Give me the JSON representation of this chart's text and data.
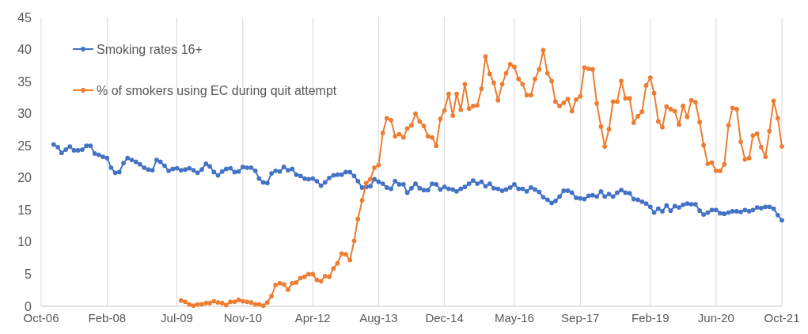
{
  "chart_data": {
    "type": "line",
    "x": [
      "2007-01",
      "2007-02",
      "2007-03",
      "2007-04",
      "2007-05",
      "2007-06",
      "2007-07",
      "2007-08",
      "2007-09",
      "2007-10",
      "2007-11",
      "2007-12",
      "2008-01",
      "2008-02",
      "2008-03",
      "2008-04",
      "2008-05",
      "2008-06",
      "2008-07",
      "2008-08",
      "2008-09",
      "2008-10",
      "2008-11",
      "2008-12",
      "2009-01",
      "2009-02",
      "2009-03",
      "2009-04",
      "2009-05",
      "2009-06",
      "2009-07",
      "2009-08",
      "2009-09",
      "2009-10",
      "2009-11",
      "2009-12",
      "2010-01",
      "2010-02",
      "2010-03",
      "2010-04",
      "2010-05",
      "2010-06",
      "2010-07",
      "2010-08",
      "2010-09",
      "2010-10",
      "2010-11",
      "2010-12",
      "2011-01",
      "2011-02",
      "2011-03",
      "2011-04",
      "2011-05",
      "2011-06",
      "2011-07",
      "2011-08",
      "2011-09",
      "2011-10",
      "2011-11",
      "2011-12",
      "2012-01",
      "2012-02",
      "2012-03",
      "2012-04",
      "2012-05",
      "2012-06",
      "2012-07",
      "2012-08",
      "2012-09",
      "2012-10",
      "2012-11",
      "2012-12",
      "2013-01",
      "2013-02",
      "2013-03",
      "2013-04",
      "2013-05",
      "2013-06",
      "2013-07",
      "2013-08",
      "2013-09",
      "2013-10",
      "2013-11",
      "2013-12",
      "2014-01",
      "2014-02",
      "2014-03",
      "2014-04",
      "2014-05",
      "2014-06",
      "2014-07",
      "2014-08",
      "2014-09",
      "2014-10",
      "2014-11",
      "2014-12",
      "2015-01",
      "2015-02",
      "2015-03",
      "2015-04",
      "2015-05",
      "2015-06",
      "2015-07",
      "2015-08",
      "2015-09",
      "2015-10",
      "2015-11",
      "2015-12",
      "2016-01",
      "2016-02",
      "2016-03",
      "2016-04",
      "2016-05",
      "2016-06",
      "2016-07",
      "2016-08",
      "2016-09",
      "2016-10",
      "2016-11",
      "2016-12",
      "2017-01",
      "2017-02",
      "2017-03",
      "2017-04",
      "2017-05",
      "2017-06",
      "2017-07",
      "2017-08",
      "2017-09",
      "2017-10",
      "2017-11",
      "2017-12",
      "2018-01",
      "2018-02",
      "2018-03",
      "2018-04",
      "2018-05",
      "2018-06",
      "2018-07",
      "2018-08",
      "2018-09",
      "2018-10",
      "2018-11",
      "2018-12",
      "2019-01",
      "2019-02",
      "2019-03",
      "2019-04",
      "2019-05",
      "2019-06",
      "2019-07",
      "2019-08",
      "2019-09",
      "2019-10",
      "2019-11",
      "2019-12",
      "2020-01",
      "2020-02",
      "2020-03",
      "2020-04",
      "2020-05",
      "2020-06",
      "2020-07",
      "2020-08",
      "2020-09",
      "2020-10",
      "2020-11",
      "2020-12",
      "2021-01",
      "2021-02",
      "2021-03",
      "2021-04",
      "2021-05",
      "2021-06",
      "2021-07",
      "2021-08",
      "2021-09",
      "2021-10"
    ],
    "series": [
      {
        "name": "Smoking rates 16+",
        "color": "#4472c4",
        "values": [
          25.2,
          24.8,
          23.9,
          24.4,
          24.9,
          24.3,
          24.3,
          24.4,
          25.0,
          25.0,
          23.8,
          23.6,
          23.3,
          23.1,
          21.6,
          20.8,
          20.9,
          22.3,
          23.1,
          22.8,
          22.5,
          22.1,
          21.6,
          21.3,
          21.2,
          22.8,
          22.5,
          21.9,
          21.1,
          21.4,
          21.5,
          21.2,
          21.3,
          21.5,
          21.2,
          20.8,
          21.3,
          22.2,
          21.8,
          20.9,
          20.4,
          21.0,
          21.4,
          21.5,
          20.9,
          21.0,
          21.7,
          21.6,
          21.6,
          21.1,
          19.9,
          19.3,
          19.2,
          20.7,
          21.1,
          21.0,
          21.7,
          21.2,
          21.4,
          20.5,
          20.3,
          19.9,
          19.8,
          19.9,
          19.5,
          18.8,
          19.3,
          20.0,
          20.4,
          20.5,
          20.5,
          20.9,
          20.9,
          20.3,
          19.5,
          18.5,
          18.6,
          18.7,
          19.8,
          19.4,
          19.1,
          18.5,
          18.3,
          19.5,
          19.0,
          19.0,
          17.7,
          18.4,
          19.1,
          18.4,
          18.1,
          18.1,
          19.1,
          19.0,
          18.2,
          18.6,
          18.3,
          18.2,
          17.9,
          18.3,
          18.6,
          19.1,
          19.6,
          19.1,
          19.4,
          18.7,
          19.1,
          18.4,
          18.3,
          18.0,
          18.2,
          18.5,
          19.0,
          18.3,
          18.3,
          17.9,
          18.5,
          18.2,
          17.8,
          17.0,
          16.6,
          16.1,
          16.4,
          17.1,
          18.0,
          18.0,
          17.7,
          16.9,
          16.8,
          16.7,
          17.2,
          17.3,
          17.1,
          17.9,
          17.1,
          17.5,
          17.1,
          17.7,
          18.1,
          17.7,
          17.6,
          16.7,
          16.6,
          16.3,
          16.0,
          15.5,
          14.6,
          15.2,
          14.8,
          15.7,
          14.9,
          15.6,
          15.4,
          15.8,
          16.0,
          15.9,
          15.9,
          14.9,
          14.3,
          14.6,
          15.0,
          15.0,
          14.5,
          14.4,
          14.6,
          14.8,
          14.8,
          14.7,
          15.0,
          14.8,
          15.0,
          15.4,
          15.3,
          15.5,
          15.5,
          15.2,
          14.2,
          13.4
        ]
      },
      {
        "name": "% of smokers using EC during quit attempt",
        "color": "#ed7d31",
        "values": [
          null,
          null,
          null,
          null,
          null,
          null,
          null,
          null,
          null,
          null,
          null,
          null,
          null,
          null,
          null,
          null,
          null,
          null,
          null,
          null,
          null,
          null,
          null,
          null,
          null,
          null,
          null,
          null,
          null,
          null,
          null,
          0.9,
          0.7,
          0.3,
          0.1,
          0.3,
          0.3,
          0.5,
          0.5,
          0.8,
          0.6,
          0.5,
          0.2,
          0.7,
          0.7,
          1.0,
          0.8,
          0.7,
          0.6,
          0.3,
          0.3,
          0.1,
          0.6,
          1.6,
          3.3,
          3.6,
          3.4,
          2.6,
          3.6,
          3.7,
          4.4,
          4.6,
          5.0,
          5.0,
          4.1,
          3.9,
          4.7,
          4.6,
          5.9,
          6.7,
          8.2,
          8.1,
          7.2,
          10.2,
          13.6,
          16.5,
          19.2,
          19.8,
          21.6,
          22.0,
          27.0,
          29.3,
          29.0,
          26.5,
          26.8,
          26.3,
          27.7,
          28.2,
          30.0,
          28.8,
          28.1,
          26.5,
          26.3,
          25.0,
          29.2,
          30.5,
          33.1,
          29.7,
          33.1,
          30.6,
          34.6,
          30.8,
          31.2,
          31.3,
          33.9,
          38.9,
          36.2,
          34.8,
          32.1,
          34.6,
          36.3,
          37.7,
          37.3,
          35.4,
          34.6,
          32.9,
          32.9,
          35.4,
          36.9,
          39.9,
          36.3,
          35.1,
          31.9,
          31.2,
          31.7,
          32.3,
          30.4,
          32.2,
          32.7,
          37.2,
          37.0,
          36.9,
          31.6,
          28.0,
          24.9,
          27.6,
          31.9,
          31.9,
          35.1,
          32.4,
          32.4,
          28.6,
          29.6,
          30.3,
          34.4,
          35.6,
          33.2,
          28.8,
          27.9,
          31.1,
          30.7,
          30.4,
          28.3,
          31.2,
          29.5,
          32.1,
          31.8,
          28.7,
          25.1,
          22.2,
          22.4,
          21.1,
          21.1,
          22.1,
          28.2,
          30.9,
          30.7,
          25.6,
          22.9,
          23.1,
          26.6,
          26.9,
          24.8,
          23.3,
          27.3,
          32.0,
          29.3,
          24.9
        ]
      }
    ],
    "xlim": [
      "2006-10",
      "2021-10"
    ],
    "xticks": [
      {
        "value": "2006-10",
        "label": "Oct-06"
      },
      {
        "value": "2008-02",
        "label": "Feb-08"
      },
      {
        "value": "2009-07",
        "label": "Jul-09"
      },
      {
        "value": "2010-11",
        "label": "Nov-10"
      },
      {
        "value": "2012-04",
        "label": "Apr-12"
      },
      {
        "value": "2013-08",
        "label": "Aug-13"
      },
      {
        "value": "2014-12",
        "label": "Dec-14"
      },
      {
        "value": "2016-05",
        "label": "May-16"
      },
      {
        "value": "2017-09",
        "label": "Sep-17"
      },
      {
        "value": "2019-02",
        "label": "Feb-19"
      },
      {
        "value": "2020-06",
        "label": "Jun-20"
      },
      {
        "value": "2021-10",
        "label": "Oct-21"
      }
    ],
    "ylim": [
      0,
      45
    ],
    "yticks": [
      0,
      5,
      10,
      15,
      20,
      25,
      30,
      35,
      40,
      45
    ],
    "grid": "x",
    "legend": "top left",
    "marker": "circle",
    "line_style": "solid"
  }
}
